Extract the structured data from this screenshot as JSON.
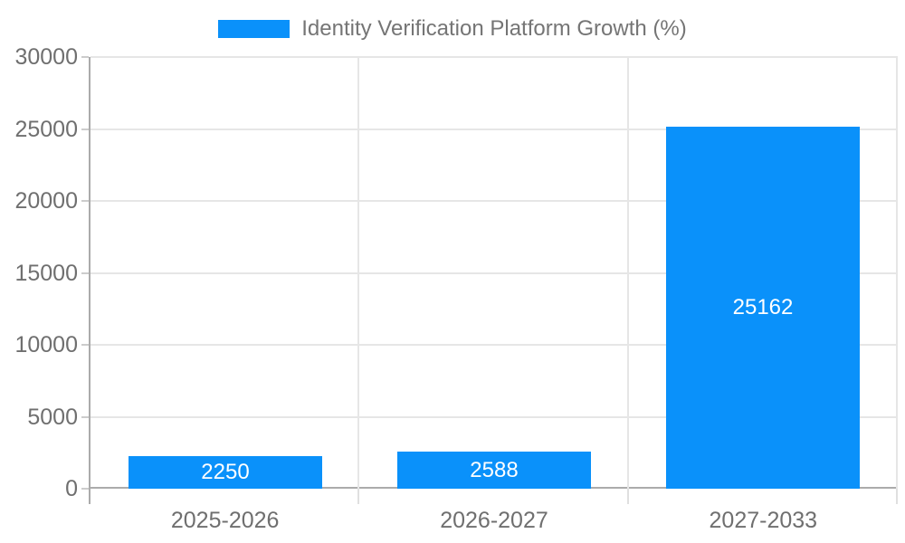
{
  "legend": {
    "label": "Identity Verification Platform Growth (%)"
  },
  "chart_data": {
    "type": "bar",
    "title": "Identity Verification Platform Growth (%)",
    "categories": [
      "2025-2026",
      "2026-2027",
      "2027-2033"
    ],
    "series": [
      {
        "name": "Identity Verification Platform Growth (%)",
        "values": [
          2250,
          2588,
          25162
        ]
      }
    ],
    "bar_value_labels": [
      "2250",
      "2588",
      "25162"
    ],
    "xlabel": "",
    "ylabel": "",
    "ylim": [
      0,
      30000
    ],
    "y_ticks": [
      0,
      5000,
      10000,
      15000,
      20000,
      25000,
      30000
    ],
    "y_tick_labels": [
      "0",
      "5000",
      "10000",
      "15000",
      "20000",
      "25000",
      "30000"
    ],
    "grid": true,
    "legend_position": "top-center",
    "value_labels_inside_bars": true,
    "colors": {
      "bar": "#0a91fa",
      "legend_text": "#757575",
      "tick_text": "#6f6f6f",
      "axis_line": "#ababab",
      "gridline": "#e6e6e6",
      "tick_mark": "#cccccc",
      "bar_label_text": "#ffffff",
      "background": "#ffffff"
    }
  }
}
